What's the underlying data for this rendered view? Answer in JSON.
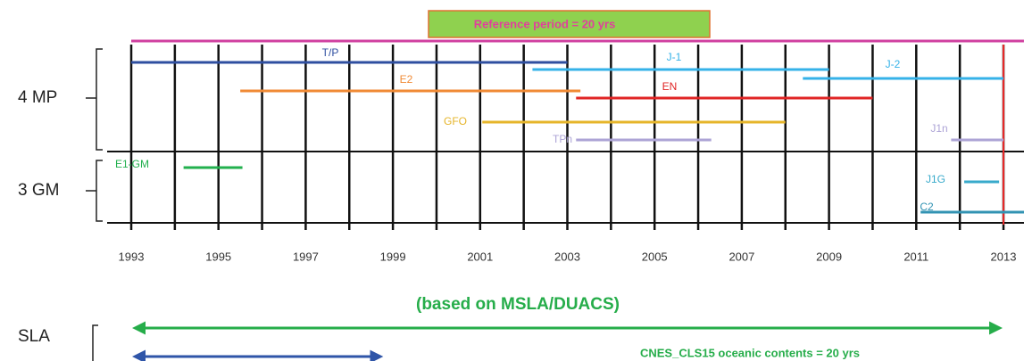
{
  "chart_data": {
    "type": "gantt",
    "title": "Reference period  = 20 yrs",
    "title_color": "#e0409c",
    "title_background": "#8fd14f",
    "reference": {
      "start": 1993,
      "end": 2013.47,
      "color": "#d040a0"
    },
    "marker": {
      "x": 2013,
      "color": "#e82828"
    },
    "xlim": [
      1993,
      2013
    ],
    "xticks": [
      1993,
      1995,
      1997,
      1999,
      2001,
      2003,
      2005,
      2007,
      2009,
      2011,
      2013
    ],
    "grid_x": [
      1993,
      1994,
      1995,
      1996,
      1997,
      1998,
      1999,
      2000,
      2001,
      2002,
      2003,
      2004,
      2005,
      2006,
      2007,
      2008,
      2009,
      2010,
      2011,
      2012,
      2013
    ],
    "rows": [
      "4 MP",
      "3 GM"
    ],
    "series": [
      {
        "name": "T/P",
        "start": 1993,
        "end": 2003,
        "color": "#2f4fa0"
      },
      {
        "name": "J-1",
        "start": 2002.2,
        "end": 2009,
        "color": "#35b2e8"
      },
      {
        "name": "J-2",
        "start": 2008.4,
        "end": 2013,
        "color": "#35b2e8"
      },
      {
        "name": "E2",
        "start": 1995.5,
        "end": 2003.3,
        "color": "#f08a35"
      },
      {
        "name": "EN",
        "start": 2003.2,
        "end": 2010,
        "color": "#e02525"
      },
      {
        "name": "GFO",
        "start": 2001.05,
        "end": 2008,
        "color": "#e6b52a"
      },
      {
        "name": "TPn",
        "start": 2003.2,
        "end": 2006.3,
        "color": "#ada4d6"
      },
      {
        "name": "J1n",
        "start": 2011.8,
        "end": 2013,
        "color": "#ada4d6"
      },
      {
        "name": "E1-GM",
        "start": 1994.2,
        "end": 1995.55,
        "color": "#22b04e"
      },
      {
        "name": "J1G",
        "start": 2012.1,
        "end": 2012.9,
        "color": "#38aacb"
      },
      {
        "name": "C2",
        "start": 2011.1,
        "end": 2013.5,
        "color": "#3293b3"
      }
    ],
    "sla_label": "SLA",
    "arrows": [
      {
        "label": "(based on MSLA/DUACS)",
        "start": 1993,
        "end": 2013,
        "color": "#26ad4a"
      },
      {
        "label": "CNES_CLS15 oceanic contents = 20 yrs",
        "start": 1993,
        "end": 1998.8,
        "color": "#2f55a8"
      }
    ]
  }
}
